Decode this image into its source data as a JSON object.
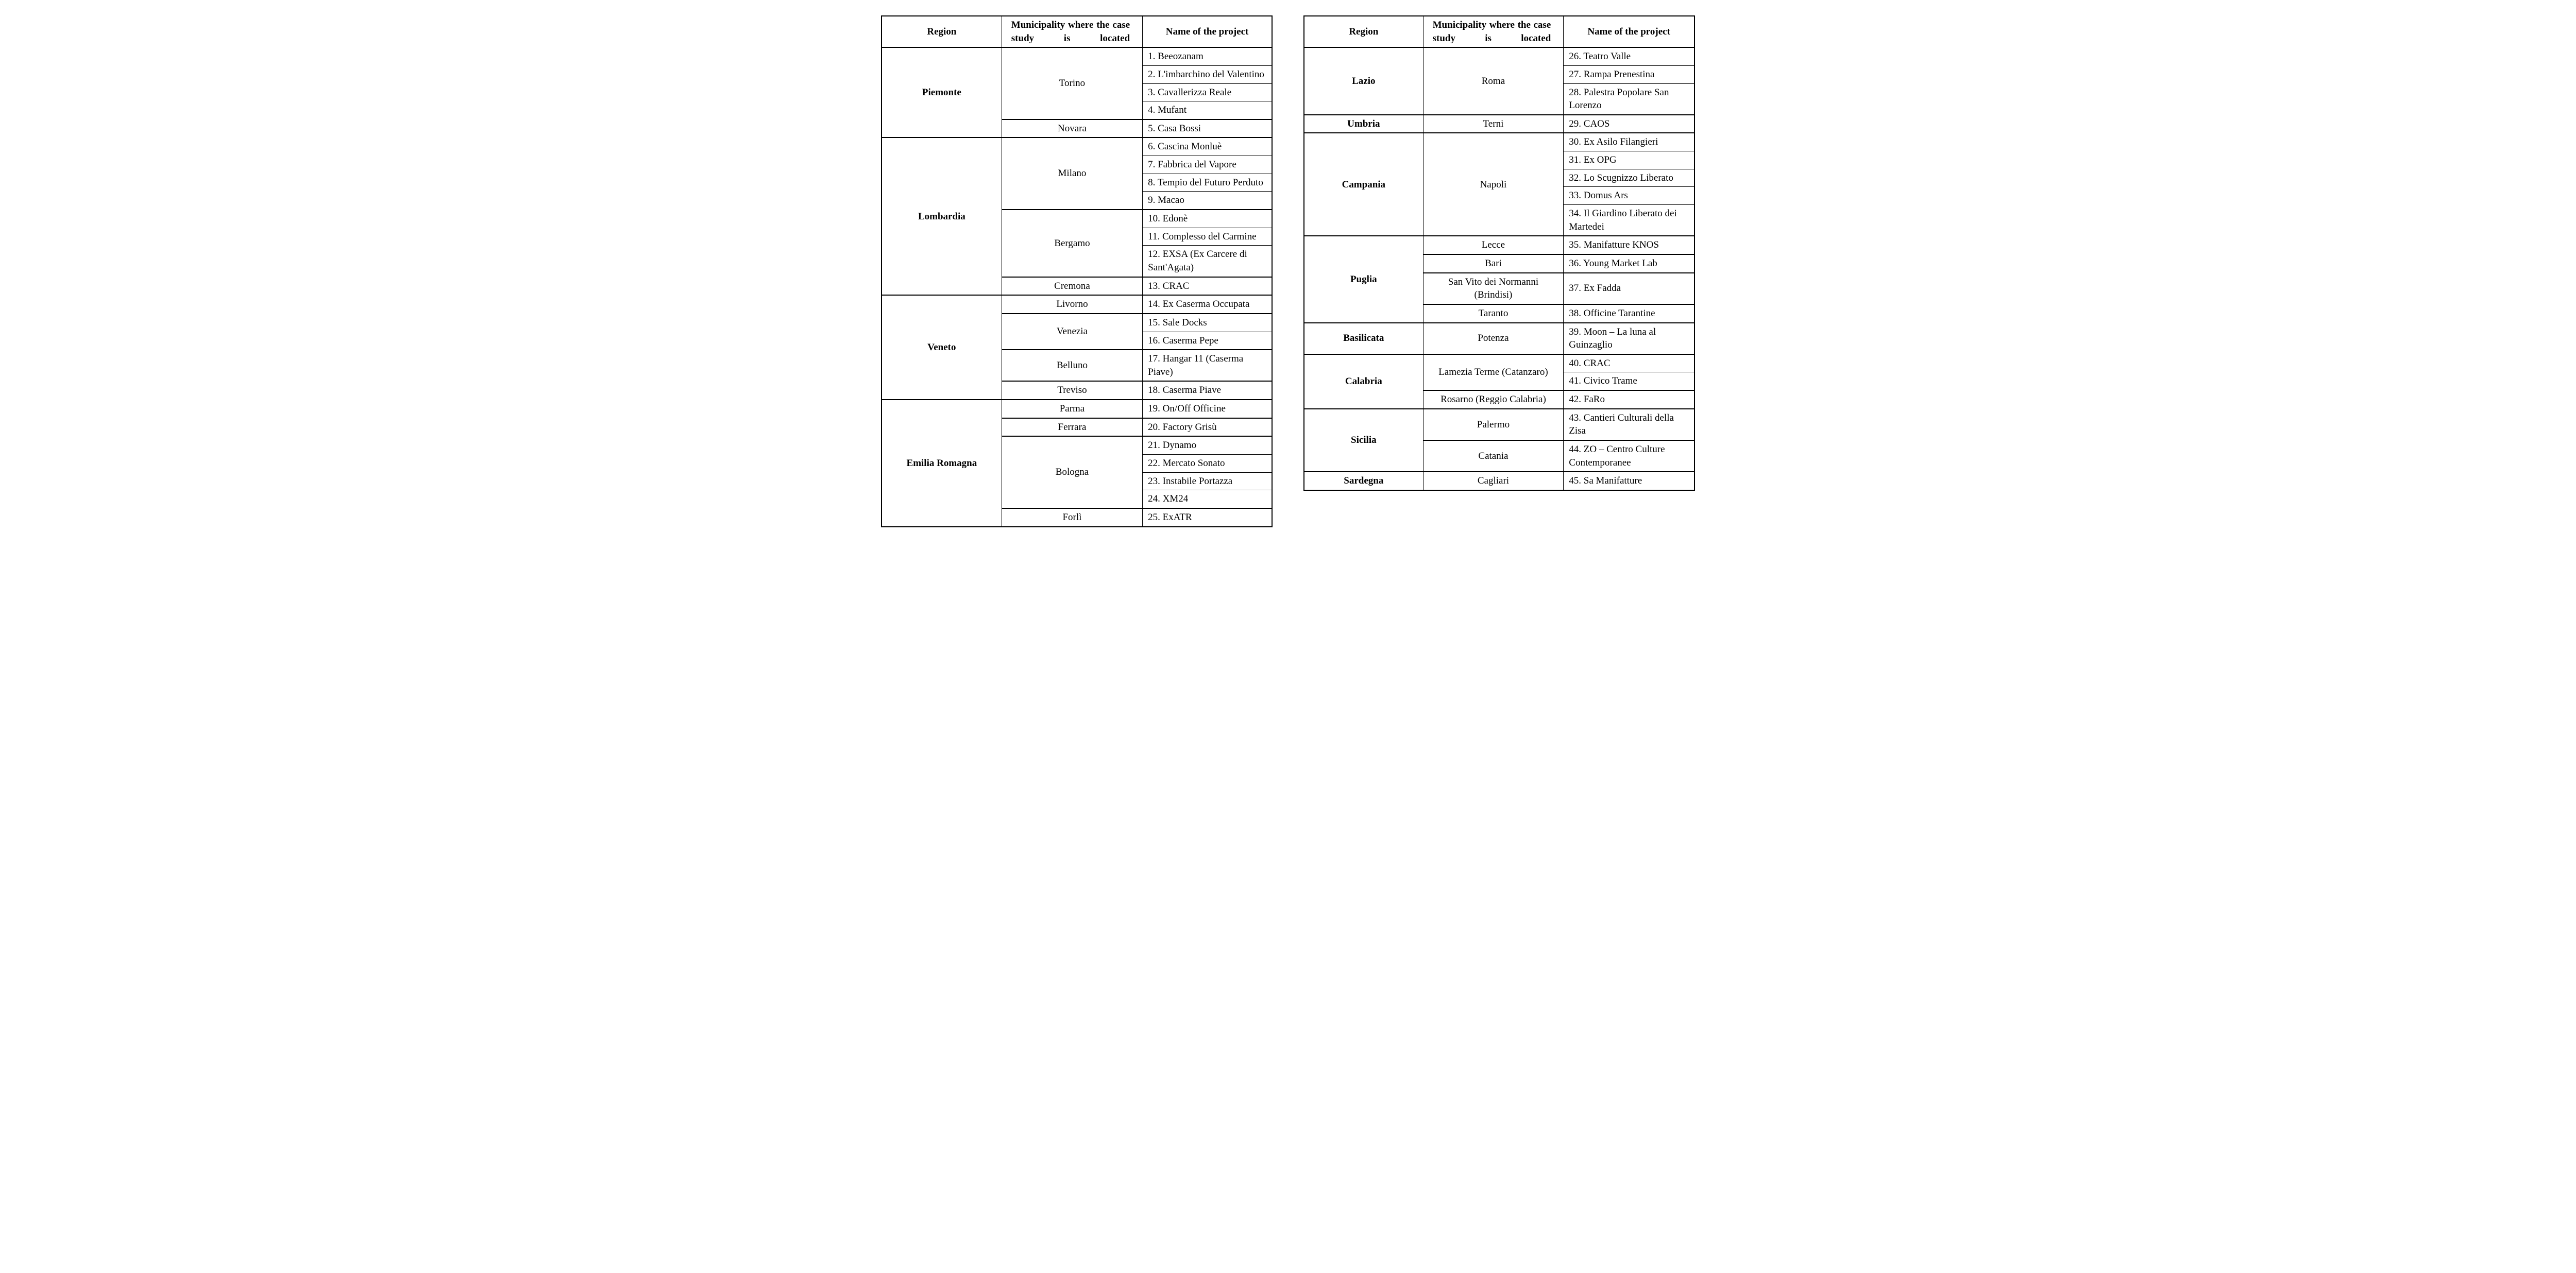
{
  "page_background": "#ffffff",
  "text_color": "#000000",
  "border_color": "#000000",
  "font_family": "Garamond, Georgia, serif",
  "base_font_size_pt": 14,
  "headers": {
    "region": "Region",
    "municipality": "Municipality where the case study is located",
    "project": "Name of the project"
  },
  "left_table": {
    "regions": [
      {
        "name": "Piemonte",
        "municipalities": [
          {
            "name": "Torino",
            "projects": [
              "1. Beeozanam",
              "2. L'imbarchino del Valentino",
              "3. Cavallerizza Reale",
              "4. Mufant"
            ]
          },
          {
            "name": "Novara",
            "projects": [
              "5. Casa Bossi"
            ]
          }
        ]
      },
      {
        "name": "Lombardia",
        "municipalities": [
          {
            "name": "Milano",
            "projects": [
              "6. Cascina Monluè",
              "7. Fabbrica del Vapore",
              "8. Tempio del Futuro Perduto",
              "9. Macao"
            ]
          },
          {
            "name": "Bergamo",
            "projects": [
              "10. Edonè",
              "11. Complesso del Carmine",
              "12. EXSA (Ex Carcere di Sant'Agata)"
            ]
          },
          {
            "name": "Cremona",
            "projects": [
              "13. CRAC"
            ]
          }
        ]
      },
      {
        "name": "Veneto",
        "municipalities": [
          {
            "name": "Livorno",
            "projects": [
              "14. Ex Caserma Occupata"
            ]
          },
          {
            "name": "Venezia",
            "projects": [
              "15. Sale Docks",
              "16. Caserma Pepe"
            ]
          },
          {
            "name": "Belluno",
            "projects": [
              "17. Hangar 11 (Caserma Piave)"
            ]
          },
          {
            "name": "Treviso",
            "projects": [
              "18. Caserma Piave"
            ]
          }
        ]
      },
      {
        "name": "Emilia Romagna",
        "municipalities": [
          {
            "name": "Parma",
            "projects": [
              "19. On/Off Officine"
            ]
          },
          {
            "name": "Ferrara",
            "projects": [
              "20. Factory Grisù"
            ]
          },
          {
            "name": "Bologna",
            "projects": [
              "21. Dynamo",
              "22. Mercato Sonato",
              "23. Instabile Portazza",
              "24. XM24"
            ]
          },
          {
            "name": "Forlì",
            "projects": [
              "25. ExATR"
            ]
          }
        ]
      }
    ]
  },
  "right_table": {
    "regions": [
      {
        "name": "Lazio",
        "municipalities": [
          {
            "name": "Roma",
            "projects": [
              "26. Teatro Valle",
              "27. Rampa Prenestina",
              "28. Palestra Popolare San Lorenzo"
            ]
          }
        ]
      },
      {
        "name": "Umbria",
        "municipalities": [
          {
            "name": "Terni",
            "projects": [
              "29. CAOS"
            ]
          }
        ]
      },
      {
        "name": "Campania",
        "municipalities": [
          {
            "name": "Napoli",
            "projects": [
              "30. Ex Asilo Filangieri",
              "31. Ex OPG",
              "32. Lo Scugnizzo Liberato",
              "33. Domus Ars",
              "34. Il Giardino Liberato dei Martedei"
            ]
          }
        ]
      },
      {
        "name": "Puglia",
        "municipalities": [
          {
            "name": "Lecce",
            "projects": [
              "35. Manifatture KNOS"
            ]
          },
          {
            "name": "Bari",
            "projects": [
              "36. Young Market Lab"
            ]
          },
          {
            "name": "San Vito dei Normanni (Brindisi)",
            "projects": [
              "37. Ex Fadda"
            ]
          },
          {
            "name": "Taranto",
            "projects": [
              "38. Officine Tarantine"
            ]
          }
        ]
      },
      {
        "name": "Basilicata",
        "municipalities": [
          {
            "name": "Potenza",
            "projects": [
              "39. Moon – La luna al Guinzaglio"
            ]
          }
        ]
      },
      {
        "name": "Calabria",
        "municipalities": [
          {
            "name": "Lamezia Terme (Catanzaro)",
            "projects": [
              "40. CRAC",
              "41. Civico Trame"
            ]
          },
          {
            "name": "Rosarno (Reggio Calabria)",
            "projects": [
              "42. FaRo"
            ]
          }
        ]
      },
      {
        "name": "Sicilia",
        "municipalities": [
          {
            "name": "Palermo",
            "projects": [
              "43. Cantieri Culturali della Zisa"
            ]
          },
          {
            "name": "Catania",
            "projects": [
              "44. ZO – Centro Culture Contemporanee"
            ]
          }
        ]
      },
      {
        "name": "Sardegna",
        "municipalities": [
          {
            "name": "Cagliari",
            "projects": [
              "45. Sa Manifatture"
            ]
          }
        ]
      }
    ]
  }
}
